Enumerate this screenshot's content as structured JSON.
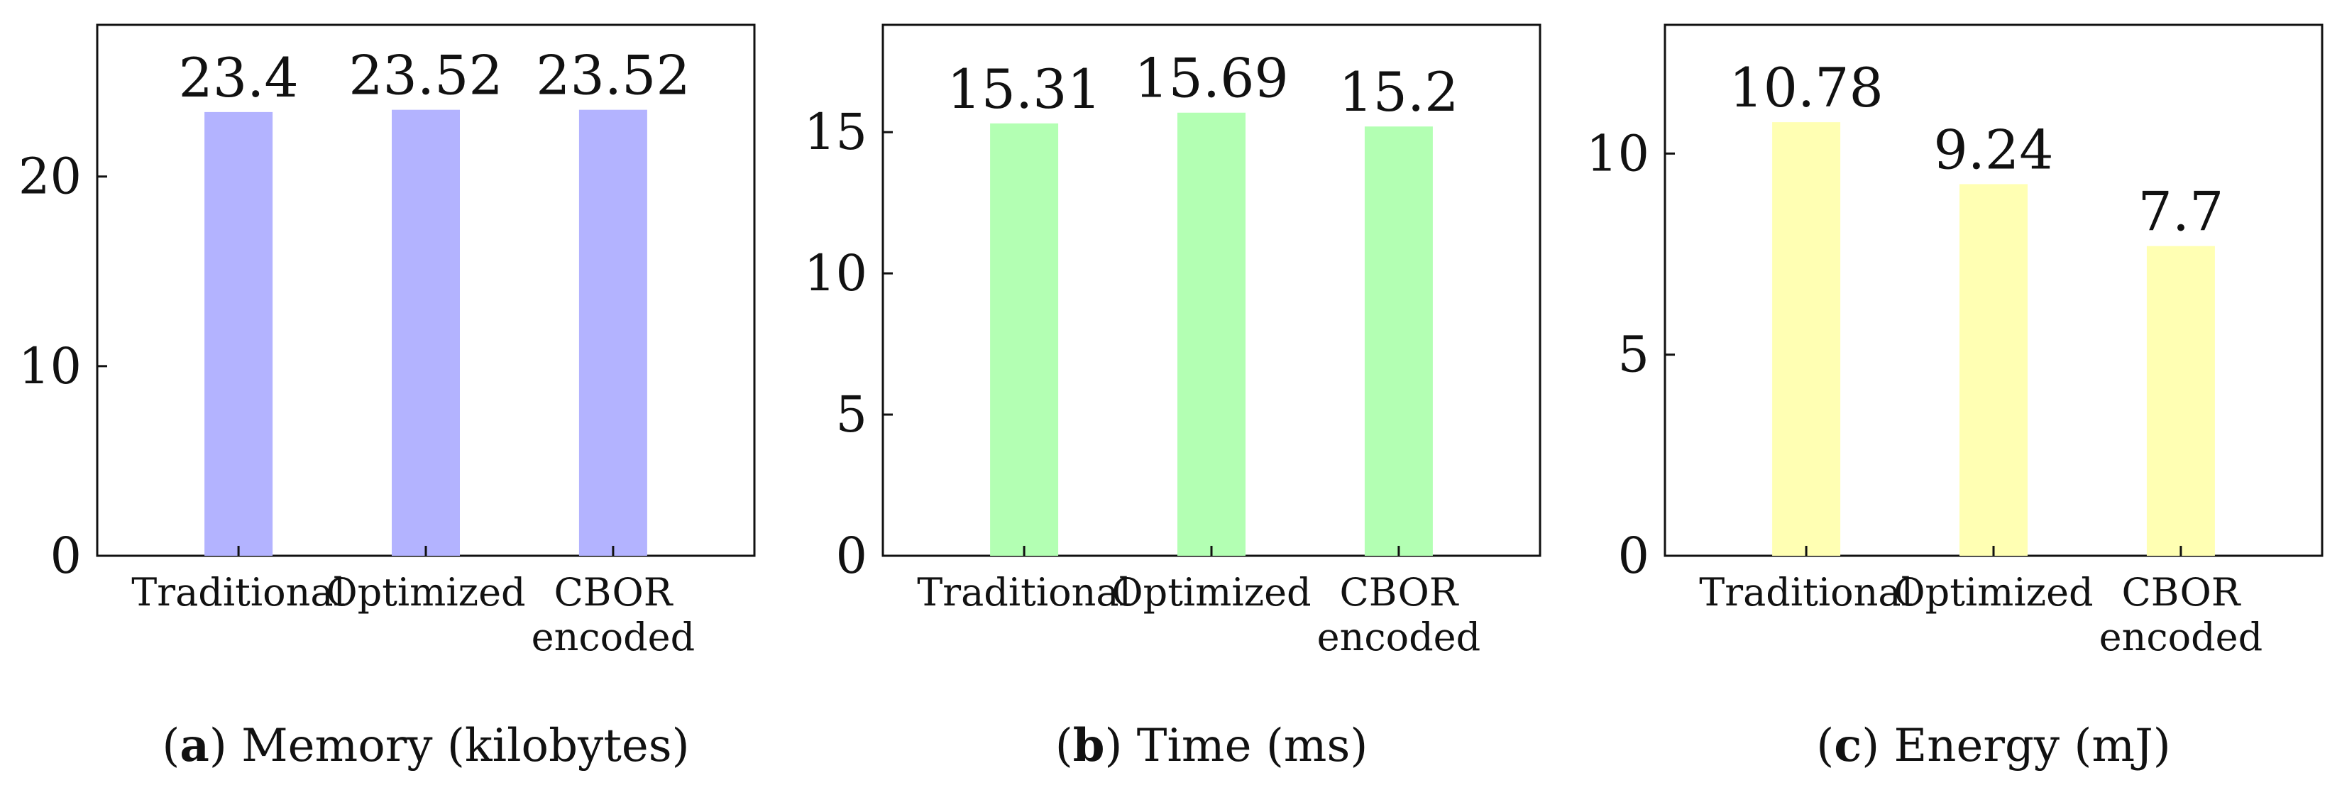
{
  "chart_data": [
    {
      "type": "bar",
      "caption_letter": "a",
      "caption_text": "Memory (kilobytes)",
      "categories": [
        [
          "Traditional"
        ],
        [
          "Optimized"
        ],
        [
          "CBOR",
          "encoded"
        ]
      ],
      "values": [
        23.4,
        23.52,
        23.52
      ],
      "value_labels": [
        "23.4",
        "23.52",
        "23.52"
      ],
      "yticks": [
        0,
        10,
        20
      ],
      "ylim": [
        0,
        28
      ],
      "bar_color": "#b3b3ff",
      "grid": false
    },
    {
      "type": "bar",
      "caption_letter": "b",
      "caption_text": "Time (ms)",
      "categories": [
        [
          "Traditional"
        ],
        [
          "Optimized"
        ],
        [
          "CBOR",
          "encoded"
        ]
      ],
      "values": [
        15.31,
        15.69,
        15.2
      ],
      "value_labels": [
        "15.31",
        "15.69",
        "15.2"
      ],
      "yticks": [
        0,
        5,
        10,
        15
      ],
      "ylim": [
        0,
        18.8
      ],
      "bar_color": "#b3ffb3",
      "grid": false
    },
    {
      "type": "bar",
      "caption_letter": "c",
      "caption_text": "Energy (mJ)",
      "categories": [
        [
          "Traditional"
        ],
        [
          "Optimized"
        ],
        [
          "CBOR",
          "encoded"
        ]
      ],
      "values": [
        10.78,
        9.24,
        7.7
      ],
      "value_labels": [
        "10.78",
        "9.24",
        "7.7"
      ],
      "yticks": [
        0,
        5,
        10
      ],
      "ylim": [
        0,
        13.2
      ],
      "bar_color": "#ffffb3",
      "grid": false
    }
  ]
}
